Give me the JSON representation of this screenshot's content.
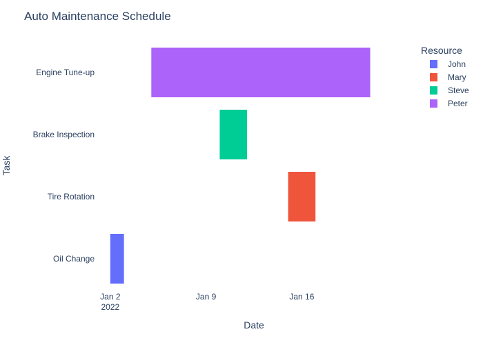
{
  "chart_data": {
    "type": "gantt",
    "title": "Auto Maintenance Schedule",
    "xlabel": "Date",
    "ylabel": "Task",
    "x_range": [
      "2022-01-01",
      "2022-01-24"
    ],
    "x_ticks": [
      {
        "date": "2022-01-02",
        "label": "Jan 2",
        "sublabel": "2022"
      },
      {
        "date": "2022-01-09",
        "label": "Jan 9",
        "sublabel": ""
      },
      {
        "date": "2022-01-16",
        "label": "Jan 16",
        "sublabel": ""
      }
    ],
    "categories": [
      "Engine Tune-up",
      "Brake Inspection",
      "Tire Rotation",
      "Oil Change"
    ],
    "tasks": [
      {
        "task": "Oil Change",
        "start": "2022-01-02",
        "finish": "2022-01-03",
        "resource": "John"
      },
      {
        "task": "Tire Rotation",
        "start": "2022-01-15",
        "finish": "2022-01-17",
        "resource": "Mary"
      },
      {
        "task": "Brake Inspection",
        "start": "2022-01-10",
        "finish": "2022-01-12",
        "resource": "Steve"
      },
      {
        "task": "Engine Tune-up",
        "start": "2022-01-05",
        "finish": "2022-01-21",
        "resource": "Peter"
      }
    ],
    "legend": {
      "title": "Resource",
      "placement": "top-right",
      "items": [
        {
          "name": "John",
          "color": "#636efa"
        },
        {
          "name": "Mary",
          "color": "#EF553B"
        },
        {
          "name": "Steve",
          "color": "#00cc96"
        },
        {
          "name": "Peter",
          "color": "#ab63fa"
        }
      ]
    },
    "grid": false
  }
}
